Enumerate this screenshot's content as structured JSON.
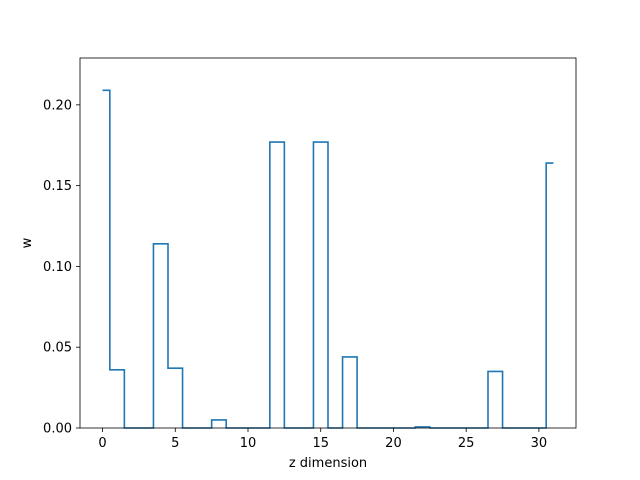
{
  "chart_data": {
    "type": "step",
    "xlabel": "z dimension",
    "ylabel": "w",
    "xlim": [
      -1.55,
      32.55
    ],
    "ylim": [
      0,
      0.229
    ],
    "x_ticks": [
      0,
      5,
      10,
      15,
      20,
      25,
      30
    ],
    "y_ticks": [
      0.0,
      0.05,
      0.1,
      0.15,
      0.2
    ],
    "y_tick_labels": [
      "0.00",
      "0.05",
      "0.10",
      "0.15",
      "0.20"
    ],
    "line_color": "#1f77b4",
    "x": [
      0,
      1,
      2,
      3,
      4,
      5,
      6,
      7,
      8,
      9,
      10,
      11,
      12,
      13,
      14,
      15,
      16,
      17,
      18,
      19,
      20,
      21,
      22,
      23,
      24,
      25,
      26,
      27,
      28,
      29,
      30,
      31
    ],
    "values": [
      0.209,
      0.036,
      0.0,
      0.0,
      0.114,
      0.037,
      0.0,
      0.0,
      0.005,
      0.0,
      0.0,
      0.0,
      0.177,
      0.0,
      0.0,
      0.177,
      0.0,
      0.044,
      0.0,
      0.0,
      0.0,
      0.0,
      0.0007,
      0.0,
      0.0,
      0.0,
      0.0,
      0.035,
      0.0,
      0.0,
      0.0,
      0.164
    ]
  }
}
